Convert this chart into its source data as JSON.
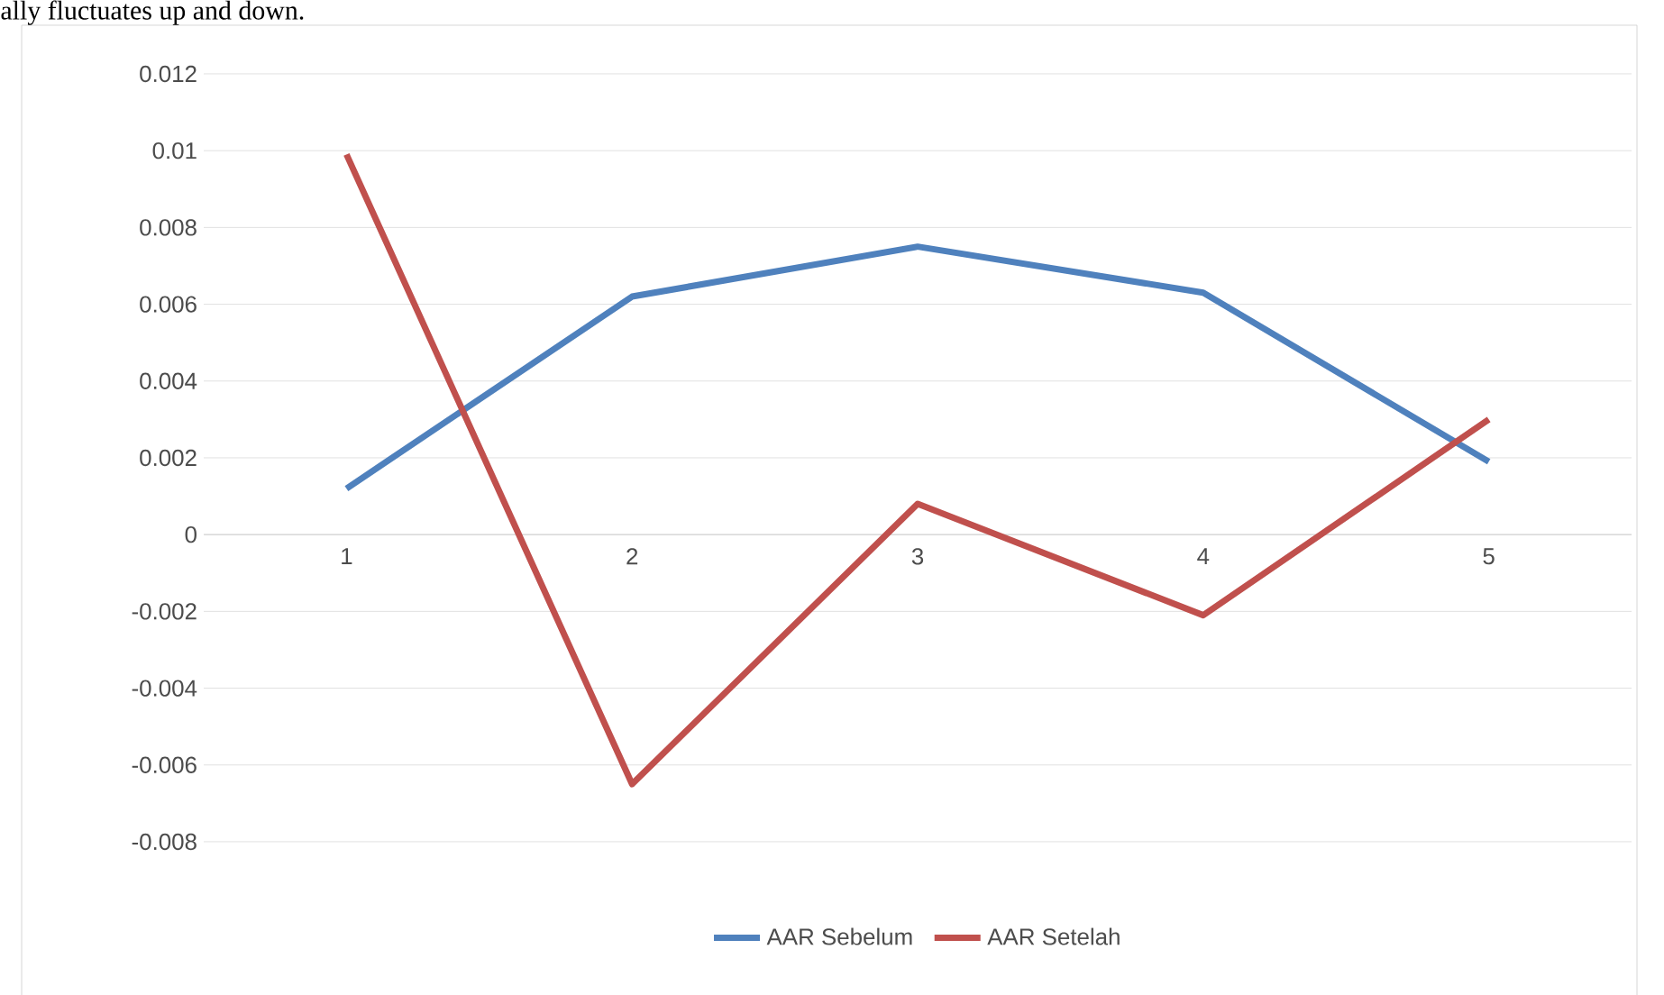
{
  "chart_data": {
    "type": "line",
    "categories": [
      "1",
      "2",
      "3",
      "4",
      "5"
    ],
    "series": [
      {
        "name": "AAR Sebelum",
        "color": "#4f81bd",
        "values": [
          0.0012,
          0.0062,
          0.0075,
          0.0063,
          0.0019
        ]
      },
      {
        "name": "AAR Setelah",
        "color": "#c0504d",
        "values": [
          0.0099,
          -0.0065,
          0.0008,
          -0.0021,
          0.003
        ]
      }
    ],
    "ylim": [
      -0.008,
      0.012
    ],
    "yticks": [
      -0.008,
      -0.006,
      -0.004,
      -0.002,
      0,
      0.002,
      0.004,
      0.006,
      0.008,
      0.01,
      0.012
    ],
    "grid": "y",
    "legend": "bottom",
    "marker": "none",
    "line_style": "solid",
    "annotations": [
      "ally fluctuates up and down."
    ]
  }
}
